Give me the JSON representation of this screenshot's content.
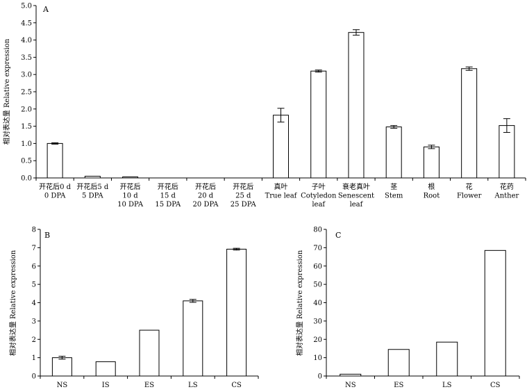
{
  "chart_data": [
    {
      "panel": "A",
      "type": "bar",
      "ylabel": "相对表达量 Relative expression",
      "ylim": [
        0,
        5
      ],
      "yticks": [
        "0.0",
        "0.5",
        "1.0",
        "1.5",
        "2.0",
        "2.5",
        "3.0",
        "3.5",
        "4.0",
        "4.5",
        "5.0"
      ],
      "categories": [
        [
          "开花后0 d",
          "0 DPA"
        ],
        [
          "开花后5 d",
          "5 DPA"
        ],
        [
          "开花后",
          "10 d",
          "10 DPA"
        ],
        [
          "开花后",
          "15 d",
          "15 DPA"
        ],
        [
          "开花后",
          "20 d",
          "20 DPA"
        ],
        [
          "开花后",
          "25 d",
          "25 DPA"
        ],
        [
          "真叶",
          "True leaf"
        ],
        [
          "子叶",
          "Cotyledon",
          "leaf"
        ],
        [
          "衰老真叶",
          "Senescent",
          "leaf"
        ],
        [
          "茎",
          "Stem"
        ],
        [
          "根",
          "Root"
        ],
        [
          "花",
          "Flower"
        ],
        [
          "花药",
          "Anther"
        ]
      ],
      "values": [
        1.0,
        0.05,
        0.03,
        0.0,
        0.0,
        0.0,
        1.82,
        3.1,
        4.22,
        1.48,
        0.9,
        3.17,
        1.52
      ],
      "errors": [
        0.02,
        0,
        0,
        0,
        0,
        0,
        0.2,
        0.03,
        0.08,
        0.04,
        0.05,
        0.05,
        0.2
      ]
    },
    {
      "panel": "B",
      "type": "bar",
      "ylabel": "相对表达量 Relative expression",
      "ylim": [
        0,
        8
      ],
      "yticks": [
        "0",
        "1",
        "2",
        "3",
        "4",
        "5",
        "6",
        "7",
        "8"
      ],
      "categories": [
        "NS",
        "IS",
        "ES",
        "LS",
        "CS"
      ],
      "values": [
        1.0,
        0.78,
        2.5,
        4.1,
        6.92
      ],
      "errors": [
        0.08,
        0,
        0,
        0.08,
        0.05
      ]
    },
    {
      "panel": "C",
      "type": "bar",
      "ylabel": "相对表达量 Relative expression",
      "ylim": [
        0,
        80
      ],
      "yticks": [
        "0",
        "10",
        "20",
        "30",
        "40",
        "50",
        "60",
        "70",
        "80"
      ],
      "categories": [
        "NS",
        "ES",
        "LS",
        "CS"
      ],
      "values": [
        1.0,
        14.5,
        18.5,
        68.5
      ],
      "errors": [
        0,
        0,
        0,
        0
      ]
    }
  ]
}
